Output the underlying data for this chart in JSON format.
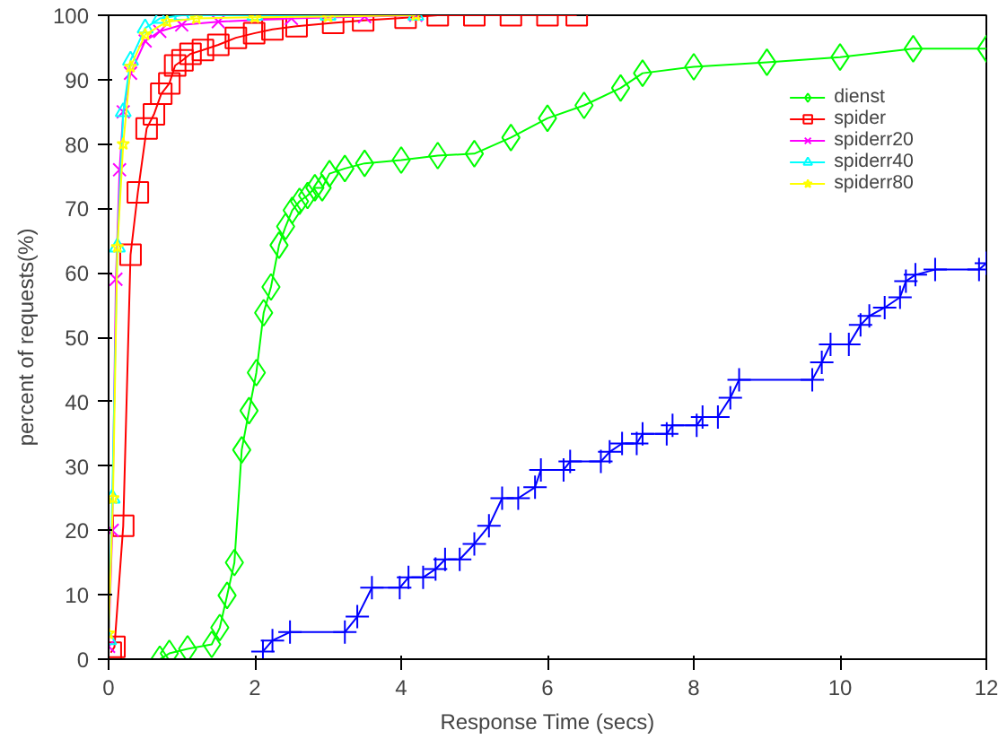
{
  "chart_data": {
    "type": "line",
    "xlabel": "Response Time (secs)",
    "ylabel": "percent of requests(%)",
    "xlim": [
      0,
      12
    ],
    "xticks": [
      0,
      2,
      4,
      6,
      8,
      10,
      12
    ],
    "ylim": [
      0,
      100
    ],
    "yticks": [
      0,
      10,
      20,
      30,
      40,
      50,
      60,
      70,
      80,
      90,
      100
    ],
    "grid": false,
    "legend": "top right",
    "series": [
      {
        "name": "dienst",
        "color": "#00ff00",
        "marker": "diamond",
        "x": [
          0.7,
          0.83,
          1.08,
          1.41,
          1.52,
          1.62,
          1.72,
          1.82,
          1.92,
          2.02,
          2.12,
          2.22,
          2.33,
          2.42,
          2.51,
          2.61,
          2.72,
          2.82,
          2.92,
          3.02,
          3.23,
          3.5,
          4.0,
          4.5,
          5.0,
          5.5,
          6.0,
          6.5,
          7.0,
          7.3,
          8.0,
          9.0,
          10.0,
          11.0,
          12.0
        ],
        "values": [
          0,
          0.9,
          1.6,
          2.3,
          4.9,
          9.9,
          15,
          32.5,
          38.6,
          44.5,
          53.8,
          57.8,
          64.3,
          67.2,
          69.7,
          71.1,
          72,
          73.2,
          73.2,
          75.4,
          76.2,
          77,
          77.5,
          78.2,
          78.5,
          81,
          84,
          86,
          88.7,
          91,
          92,
          92.7,
          93.5,
          94.8,
          94.8
        ]
      },
      {
        "color": "#0000ff",
        "marker": "cross",
        "x": [
          2.11,
          2.24,
          2.48,
          3.23,
          3.4,
          3.6,
          3.98,
          4.1,
          4.3,
          4.47,
          4.6,
          4.8,
          5.0,
          5.2,
          5.38,
          5.6,
          5.83,
          5.91,
          6.22,
          6.31,
          6.73,
          6.85,
          7.02,
          7.22,
          7.3,
          7.63,
          7.71,
          8.04,
          8.12,
          8.33,
          8.5,
          8.62,
          9.62,
          9.75,
          9.87,
          10.12,
          10.28,
          10.4,
          10.61,
          10.82,
          10.9,
          11.03,
          11.3,
          11.9,
          12.0
        ],
        "values": [
          1.2,
          2.9,
          4.2,
          4.2,
          6.6,
          11.1,
          11.1,
          12.7,
          12.7,
          14,
          15.5,
          15.5,
          17.9,
          20.7,
          25,
          25,
          26.7,
          29.4,
          29.4,
          30.7,
          30.7,
          32.2,
          33.5,
          33.5,
          35,
          35,
          36.3,
          36.3,
          37.6,
          37.6,
          40.6,
          43.4,
          43.4,
          46.1,
          48.9,
          48.9,
          51.9,
          53.3,
          54.6,
          56.2,
          58.7,
          59.7,
          60.5,
          60.5,
          61.5
        ]
      },
      {
        "name": "spider",
        "color": "#ff0000",
        "marker": "square",
        "x": [
          0.03,
          0.08,
          0.2,
          0.3,
          0.4,
          0.52,
          0.62,
          0.72,
          0.83,
          0.91,
          1.01,
          1.12,
          1.29,
          1.5,
          1.74,
          1.99,
          2.24,
          2.57,
          3.07,
          3.48,
          4.06,
          4.5,
          5.0,
          5.5,
          6.0,
          6.4
        ],
        "values": [
          1,
          1.9,
          20.7,
          62.8,
          72.5,
          82.4,
          84.6,
          87.8,
          89.4,
          92.2,
          93,
          94,
          94.6,
          95.4,
          96.5,
          97.2,
          97.8,
          98.3,
          98.8,
          99.2,
          99.6,
          100,
          100,
          100,
          100,
          100
        ]
      },
      {
        "name": "spiderr20",
        "color": "#ff00ff",
        "marker": "x",
        "x": [
          0.0,
          0.05,
          0.1,
          0.15,
          0.2,
          0.3,
          0.5,
          0.7,
          1.0,
          1.5,
          2.5,
          3.5,
          4.2
        ],
        "values": [
          2,
          20,
          59,
          76,
          85,
          91,
          96,
          97.5,
          98.5,
          99,
          99.5,
          99.8,
          100
        ]
      },
      {
        "name": "spiderr40",
        "color": "#00ffff",
        "marker": "triangle",
        "x": [
          0.0,
          0.05,
          0.12,
          0.2,
          0.3,
          0.5,
          0.7,
          1.0,
          2.0,
          3.0,
          4.2
        ],
        "values": [
          3,
          25,
          64,
          85,
          93,
          98,
          99.5,
          100,
          100,
          100,
          100
        ]
      },
      {
        "name": "spiderr80",
        "color": "#ffff00",
        "marker": "star",
        "x": [
          0.0,
          0.06,
          0.12,
          0.2,
          0.3,
          0.5,
          0.8,
          1.2,
          2.0,
          3.0,
          4.2
        ],
        "values": [
          4,
          25,
          64,
          80,
          92,
          97,
          99,
          99.5,
          99.7,
          99.8,
          100
        ]
      }
    ]
  }
}
